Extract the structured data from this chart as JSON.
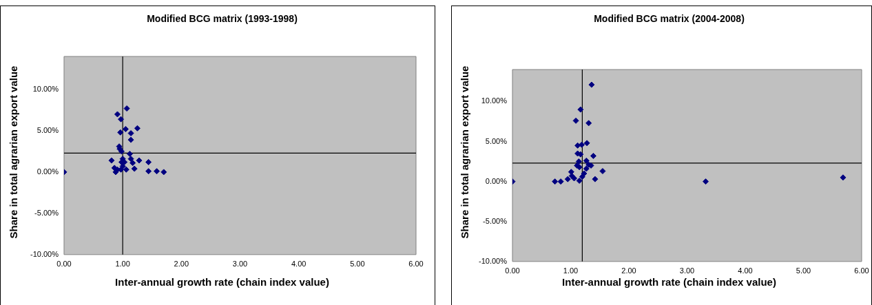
{
  "chart_data": [
    {
      "type": "scatter",
      "title": "Modified BCG matrix (1993-1998)",
      "xlabel": "Inter-annual growth rate (chain index value)",
      "ylabel": "Share in total agrarian export value",
      "series": [
        {
          "color": "#000080",
          "x": [
            1.07,
            0.91,
            0.97,
            0.96,
            1.05,
            1.25,
            1.14,
            1.14,
            0.94,
            0.95,
            0.98,
            1.12,
            1.14,
            0.81,
            1.0,
            1.28,
            1.44,
            0.98,
            1.03,
            1.17,
            0.86,
            0.91,
            0.97,
            1.06,
            1.2,
            1.44,
            1.58,
            1.7,
            0.88,
            0,
            1.0
          ],
          "values": [
            7.7,
            7.0,
            6.4,
            4.8,
            5.2,
            5.3,
            4.7,
            3.9,
            3.1,
            2.8,
            2.5,
            2.2,
            1.6,
            1.4,
            1.6,
            1.4,
            1.2,
            1.2,
            1.2,
            1.1,
            0.5,
            0.3,
            0.3,
            0.3,
            0.4,
            0.1,
            0.1,
            0.0,
            0.0,
            0,
            0.7
          ]
        }
      ],
      "marker": "diamond",
      "xlim": [
        0,
        6
      ],
      "ylim": [
        -10,
        14
      ],
      "xticks": [
        {
          "value": 0,
          "label": "0.00"
        },
        {
          "value": 1,
          "label": "1.00"
        },
        {
          "value": 2,
          "label": "2.00"
        },
        {
          "value": 3,
          "label": "3.00"
        },
        {
          "value": 4,
          "label": "4.00"
        },
        {
          "value": 5,
          "label": "5.00"
        },
        {
          "value": 6,
          "label": "6.00"
        }
      ],
      "yticks": [
        {
          "value": -10,
          "label": "-10.00%"
        },
        {
          "value": -5,
          "label": "-5.00%"
        },
        {
          "value": 0,
          "label": "0.00%"
        },
        {
          "value": 5,
          "label": "5.00%"
        },
        {
          "value": 10,
          "label": "10.00%"
        }
      ],
      "ref_lines": [
        {
          "axis": "x",
          "value": 1.0,
          "color": "#000000"
        },
        {
          "axis": "y",
          "value": 2.3,
          "color": "#000000"
        }
      ]
    },
    {
      "type": "scatter",
      "title": "Modified BCG matrix (2004-2008)",
      "xlabel": "Inter-annual growth rate (chain index value)",
      "ylabel": "Share in total agrarian export value",
      "series": [
        {
          "color": "#000080",
          "x": [
            1.36,
            1.17,
            1.09,
            1.31,
            1.12,
            1.19,
            1.28,
            1.12,
            1.17,
            1.39,
            1.14,
            1.27,
            1.11,
            1.15,
            1.31,
            1.35,
            1.27,
            1.55,
            1.01,
            1.02,
            1.23,
            1.2,
            1.06,
            1.15,
            0.95,
            0.83,
            0.73,
            1.42,
            0,
            3.32,
            5.68
          ],
          "values": [
            12.1,
            9.0,
            7.6,
            7.3,
            4.5,
            4.6,
            4.8,
            3.5,
            3.4,
            3.2,
            2.5,
            2.6,
            2.0,
            1.8,
            2.1,
            2.0,
            1.6,
            1.3,
            1.2,
            0.7,
            1.0,
            0.6,
            0.4,
            0.1,
            0.3,
            0.0,
            0.0,
            0.3,
            0,
            0.0,
            0.5
          ]
        }
      ],
      "marker": "diamond",
      "xlim": [
        0,
        6
      ],
      "ylim": [
        -10,
        14
      ],
      "xticks": [
        {
          "value": 0,
          "label": "0.00"
        },
        {
          "value": 1,
          "label": "1.00"
        },
        {
          "value": 2,
          "label": "2.00"
        },
        {
          "value": 3,
          "label": "3.00"
        },
        {
          "value": 4,
          "label": "4.00"
        },
        {
          "value": 5,
          "label": "5.00"
        },
        {
          "value": 6,
          "label": "6.00"
        }
      ],
      "yticks": [
        {
          "value": -10,
          "label": "-10.00%"
        },
        {
          "value": -5,
          "label": "-5.00%"
        },
        {
          "value": 0,
          "label": "0.00%"
        },
        {
          "value": 5,
          "label": "5.00%"
        },
        {
          "value": 10,
          "label": "10.00%"
        }
      ],
      "ref_lines": [
        {
          "axis": "x",
          "value": 1.2,
          "color": "#000000"
        },
        {
          "axis": "y",
          "value": 2.3,
          "color": "#000000"
        }
      ]
    }
  ]
}
